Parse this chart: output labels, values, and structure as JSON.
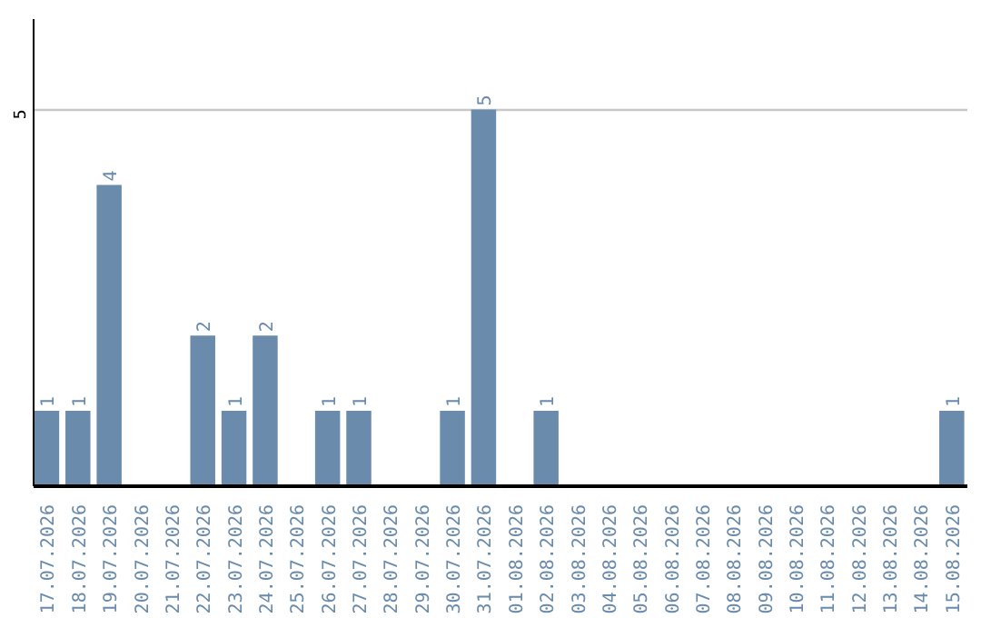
{
  "chart_data": {
    "type": "bar",
    "categories": [
      "17.07.2026",
      "18.07.2026",
      "19.07.2026",
      "20.07.2026",
      "21.07.2026",
      "22.07.2026",
      "23.07.2026",
      "24.07.2026",
      "25.07.2026",
      "26.07.2026",
      "27.07.2026",
      "28.07.2026",
      "29.07.2026",
      "30.07.2026",
      "31.07.2026",
      "01.08.2026",
      "02.08.2026",
      "03.08.2026",
      "04.08.2026",
      "05.08.2026",
      "06.08.2026",
      "07.08.2026",
      "08.08.2026",
      "09.08.2026",
      "10.08.2026",
      "11.08.2026",
      "12.08.2026",
      "13.08.2026",
      "14.08.2026",
      "15.08.2026"
    ],
    "values": [
      1,
      1,
      4,
      0,
      0,
      2,
      1,
      2,
      0,
      1,
      1,
      0,
      0,
      1,
      5,
      0,
      1,
      0,
      0,
      0,
      0,
      0,
      0,
      0,
      0,
      0,
      0,
      0,
      0,
      1
    ],
    "value_labels": [
      "1",
      "1",
      "4",
      null,
      null,
      "2",
      "1",
      "2",
      null,
      "1",
      "1",
      null,
      null,
      "1",
      "5",
      null,
      "1",
      null,
      null,
      null,
      null,
      null,
      null,
      null,
      null,
      null,
      null,
      null,
      null,
      "1"
    ],
    "color": "#6a8bab",
    "ylim": [
      0,
      6.2
    ],
    "yticks": [
      5
    ],
    "grid": "y"
  }
}
